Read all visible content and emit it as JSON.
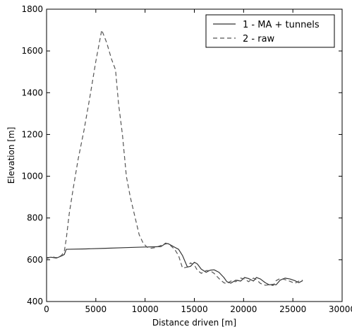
{
  "chart_data": {
    "type": "line",
    "title": "",
    "xlabel": "Distance driven [m]",
    "ylabel": "Elevation [m]",
    "xlim": [
      0,
      30000
    ],
    "ylim": [
      400,
      1800
    ],
    "xticks": [
      0,
      5000,
      10000,
      15000,
      20000,
      25000,
      30000
    ],
    "yticks": [
      400,
      600,
      800,
      1000,
      1200,
      1400,
      1600,
      1800
    ],
    "grid": false,
    "legend_position": "top-right",
    "series": [
      {
        "name": "1 - MA + tunnels",
        "color": "#333333",
        "dash": "solid",
        "x": [
          0,
          500,
          1000,
          1500,
          1800,
          2000,
          4000,
          6000,
          8000,
          10000,
          11000,
          11600,
          12000,
          12300,
          12700,
          13000,
          13400,
          13800,
          14300,
          14600,
          15000,
          15300,
          15700,
          16200,
          16600,
          17000,
          17500,
          18000,
          18300,
          18700,
          19200,
          19700,
          20100,
          20500,
          21000,
          21300,
          21700,
          22200,
          22600,
          23000,
          23300,
          23700,
          24200,
          24700,
          25200,
          25600,
          26000
        ],
        "y": [
          610,
          612,
          608,
          618,
          625,
          650,
          652,
          655,
          658,
          661,
          662,
          663,
          675,
          678,
          668,
          660,
          650,
          620,
          565,
          568,
          588,
          580,
          555,
          540,
          550,
          552,
          540,
          515,
          495,
          488,
          502,
          498,
          515,
          510,
          498,
          515,
          508,
          490,
          480,
          482,
          480,
          502,
          512,
          508,
          500,
          490,
          500
        ]
      },
      {
        "name": "2 - raw",
        "color": "#555555",
        "dash": "dashed",
        "x": [
          0,
          500,
          1000,
          1500,
          1800,
          2000,
          2300,
          2700,
          3200,
          3800,
          4400,
          5000,
          5600,
          6100,
          6600,
          7000,
          7300,
          7700,
          8100,
          8500,
          9000,
          9400,
          9800,
          10200,
          10600,
          11000,
          11400,
          11800,
          12100,
          12500,
          13000,
          13400,
          13800,
          14300,
          14600,
          15000,
          15300,
          15700,
          16200,
          16600,
          17000,
          17500,
          18000,
          18300,
          18700,
          19200,
          19700,
          20100,
          20500,
          21000,
          21300,
          21700,
          22200,
          22600,
          23000,
          23300,
          23700,
          24200,
          24700,
          25200,
          25600,
          26000
        ],
        "y": [
          605,
          615,
          610,
          620,
          640,
          700,
          820,
          940,
          1080,
          1220,
          1380,
          1550,
          1700,
          1640,
          1560,
          1510,
          1350,
          1200,
          1000,
          900,
          800,
          720,
          680,
          660,
          655,
          658,
          665,
          672,
          680,
          672,
          650,
          620,
          560,
          565,
          585,
          575,
          550,
          535,
          548,
          548,
          535,
          510,
          490,
          485,
          498,
          495,
          512,
          508,
          495,
          512,
          505,
          487,
          478,
          480,
          477,
          500,
          510,
          505,
          497,
          487,
          498,
          502
        ]
      }
    ]
  }
}
